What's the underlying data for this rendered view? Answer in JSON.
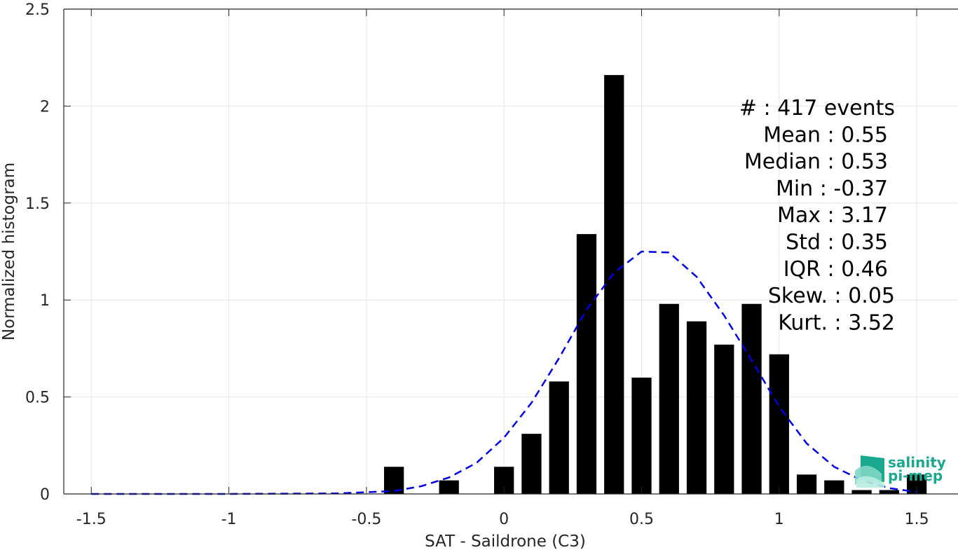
{
  "chart_data": {
    "type": "bar",
    "xlabel": "SAT - Saildrone (C3)",
    "ylabel": "Normalized histogram",
    "xlim": [
      -1.6,
      1.65
    ],
    "ylim": [
      0,
      2.5
    ],
    "xticks": [
      -1.5,
      -1,
      -0.5,
      0,
      0.5,
      1,
      1.5
    ],
    "xtick_labels": [
      "-1.5",
      "-1",
      "-0.5",
      "0",
      "0.5",
      "1",
      "1.5"
    ],
    "yticks": [
      0,
      0.5,
      1,
      1.5,
      2,
      2.5
    ],
    "ytick_labels": [
      "0",
      "0.5",
      "1",
      "1.5",
      "2",
      "2.5"
    ],
    "grid": true,
    "bin_width": 0.1,
    "bar_color": "#000000",
    "bars": [
      {
        "x": -0.4,
        "y": 0.14
      },
      {
        "x": -0.2,
        "y": 0.07
      },
      {
        "x": 0.0,
        "y": 0.14
      },
      {
        "x": 0.1,
        "y": 0.31
      },
      {
        "x": 0.2,
        "y": 0.58
      },
      {
        "x": 0.3,
        "y": 1.34
      },
      {
        "x": 0.4,
        "y": 2.16
      },
      {
        "x": 0.5,
        "y": 0.6
      },
      {
        "x": 0.6,
        "y": 0.98
      },
      {
        "x": 0.7,
        "y": 0.89
      },
      {
        "x": 0.8,
        "y": 0.77
      },
      {
        "x": 0.9,
        "y": 0.98
      },
      {
        "x": 1.0,
        "y": 0.72
      },
      {
        "x": 1.1,
        "y": 0.1
      },
      {
        "x": 1.2,
        "y": 0.07
      },
      {
        "x": 1.3,
        "y": 0.02
      },
      {
        "x": 1.4,
        "y": 0.02
      },
      {
        "x": 1.5,
        "y": 0.1
      }
    ],
    "fit_curve": {
      "style": "dashed",
      "color": "#0000e6",
      "points": [
        [
          -1.5,
          0.0
        ],
        [
          -1.0,
          0.0
        ],
        [
          -0.6,
          0.003
        ],
        [
          -0.4,
          0.015
        ],
        [
          -0.3,
          0.04
        ],
        [
          -0.2,
          0.085
        ],
        [
          -0.1,
          0.16
        ],
        [
          0.0,
          0.29
        ],
        [
          0.1,
          0.47
        ],
        [
          0.2,
          0.7
        ],
        [
          0.3,
          0.95
        ],
        [
          0.4,
          1.14
        ],
        [
          0.5,
          1.25
        ],
        [
          0.6,
          1.245
        ],
        [
          0.7,
          1.12
        ],
        [
          0.8,
          0.92
        ],
        [
          0.9,
          0.69
        ],
        [
          1.0,
          0.45
        ],
        [
          1.1,
          0.26
        ],
        [
          1.2,
          0.14
        ],
        [
          1.3,
          0.07
        ],
        [
          1.4,
          0.03
        ],
        [
          1.5,
          0.01
        ]
      ]
    },
    "stats": [
      "#  : 417 events",
      "Mean : 0.55",
      "Median : 0.53",
      "Min : -0.37",
      "Max : 3.17",
      "Std : 0.35",
      "IQR : 0.46",
      "Skew. : 0.05",
      "Kurt. : 3.52"
    ]
  },
  "logo": {
    "name": "salinity-pimep-logo",
    "line1": "salinity",
    "line2": "pi-mep",
    "color": "#1aa88e"
  }
}
